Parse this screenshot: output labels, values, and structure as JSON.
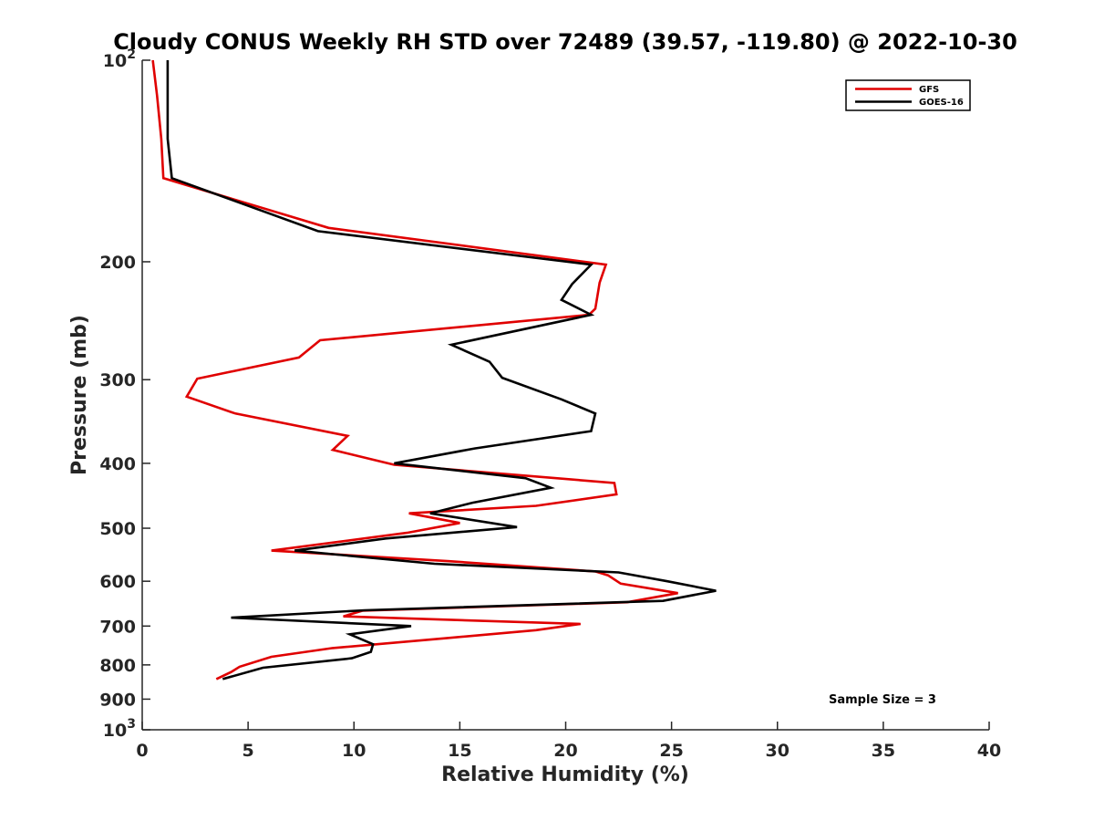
{
  "chart_data": {
    "type": "line",
    "title": "Cloudy CONUS Weekly RH STD over 72489 (39.57, -119.80) @ 2022-10-30",
    "xlabel": "Relative Humidity (%)",
    "ylabel": "Pressure (mb)",
    "xlim": [
      0,
      40
    ],
    "ylim": [
      100,
      1000
    ],
    "y_scale": "log",
    "y_reversed": true,
    "x_ticks": [
      0,
      5,
      10,
      15,
      20,
      25,
      30,
      35,
      40
    ],
    "x_tick_labels": [
      "0",
      "5",
      "10",
      "15",
      "20",
      "25",
      "30",
      "35",
      "40"
    ],
    "y_ticks": [
      100,
      200,
      300,
      400,
      500,
      600,
      700,
      800,
      900,
      1000
    ],
    "y_tick_labels": [
      "10^2",
      "200",
      "300",
      "400",
      "500",
      "600",
      "700",
      "800",
      "900",
      "10^3"
    ],
    "grid": false,
    "legend_position": "top-right",
    "annotation": "Sample Size = 3",
    "series": [
      {
        "name": "GFS",
        "color": "#e00000",
        "points": [
          [
            0.5,
            100
          ],
          [
            0.7,
            113
          ],
          [
            0.9,
            131
          ],
          [
            1.0,
            150
          ],
          [
            8.8,
            178
          ],
          [
            21.9,
            202
          ],
          [
            21.6,
            215
          ],
          [
            21.4,
            235
          ],
          [
            21.1,
            240
          ],
          [
            8.4,
            262
          ],
          [
            7.4,
            278
          ],
          [
            2.6,
            299
          ],
          [
            2.1,
            318
          ],
          [
            4.4,
            337
          ],
          [
            9.7,
            364
          ],
          [
            9.0,
            382
          ],
          [
            11.9,
            402
          ],
          [
            22.3,
            428
          ],
          [
            22.4,
            445
          ],
          [
            18.6,
            463
          ],
          [
            12.6,
            475
          ],
          [
            15.0,
            491
          ],
          [
            12.5,
            508
          ],
          [
            6.1,
            540
          ],
          [
            14.5,
            560
          ],
          [
            21.4,
            580
          ],
          [
            22.0,
            588
          ],
          [
            22.6,
            605
          ],
          [
            25.3,
            625
          ],
          [
            22.9,
            645
          ],
          [
            10.4,
            664
          ],
          [
            9.5,
            677
          ],
          [
            20.7,
            695
          ],
          [
            18.6,
            710
          ],
          [
            14.3,
            730
          ],
          [
            9.0,
            755
          ],
          [
            6.1,
            778
          ],
          [
            4.6,
            805
          ],
          [
            4.2,
            820
          ],
          [
            3.5,
            840
          ]
        ]
      },
      {
        "name": "GOES-16",
        "color": "#000000",
        "points": [
          [
            1.2,
            100
          ],
          [
            1.2,
            113
          ],
          [
            1.2,
            131
          ],
          [
            1.4,
            150
          ],
          [
            8.3,
            180
          ],
          [
            21.2,
            202
          ],
          [
            20.3,
            216
          ],
          [
            19.8,
            228
          ],
          [
            21.2,
            240
          ],
          [
            14.6,
            266
          ],
          [
            16.4,
            282
          ],
          [
            17.0,
            298
          ],
          [
            19.8,
            321
          ],
          [
            21.4,
            337
          ],
          [
            21.2,
            358
          ],
          [
            15.7,
            380
          ],
          [
            11.9,
            400
          ],
          [
            18.1,
            421
          ],
          [
            19.3,
            435
          ],
          [
            15.6,
            458
          ],
          [
            13.6,
            475
          ],
          [
            17.7,
            498
          ],
          [
            11.5,
            518
          ],
          [
            7.2,
            540
          ],
          [
            13.8,
            565
          ],
          [
            22.5,
            582
          ],
          [
            24.8,
            600
          ],
          [
            27.1,
            620
          ],
          [
            24.6,
            642
          ],
          [
            10.5,
            663
          ],
          [
            4.2,
            680
          ],
          [
            12.7,
            700
          ],
          [
            9.8,
            720
          ],
          [
            10.9,
            745
          ],
          [
            10.8,
            765
          ],
          [
            9.9,
            782
          ],
          [
            5.7,
            808
          ],
          [
            3.8,
            840
          ]
        ]
      }
    ]
  }
}
